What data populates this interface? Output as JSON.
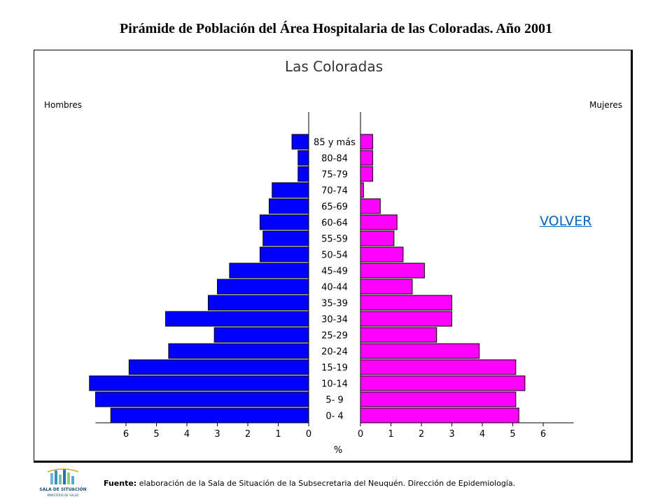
{
  "page": {
    "title": "Pirámide de Población del Área Hospitalaria de las Coloradas. Año 2001",
    "volver_label": "VOLVER",
    "footer_label": "Fuente:",
    "footer_text": " elaboración de la Sala de Situación de la Subsecretaria del Neuquén. Dirección de Epidemiología.",
    "logo_text": "SALA DE SITUACIÓN",
    "logo_subtext": "MINISTERIO DE SALUD"
  },
  "chart_data": {
    "type": "bar",
    "orientation": "horizontal-pyramid",
    "title": "Las Coloradas",
    "left_label": "Hombres",
    "right_label": "Mujeres",
    "xlabel": "%",
    "categories": [
      "0- 4",
      "5- 9",
      "10-14",
      "15-19",
      "20-24",
      "25-29",
      "30-34",
      "35-39",
      "40-44",
      "45-49",
      "50-54",
      "55-59",
      "60-64",
      "65-69",
      "70-74",
      "75-79",
      "80-84",
      "85 y más"
    ],
    "series": [
      {
        "name": "Hombres",
        "color": "#0000ff",
        "values": [
          6.5,
          7.0,
          7.2,
          5.9,
          4.6,
          3.1,
          4.7,
          3.3,
          3.0,
          2.6,
          1.6,
          1.5,
          1.6,
          1.3,
          1.2,
          0.35,
          0.35,
          0.55
        ]
      },
      {
        "name": "Mujeres",
        "color": "#ff00ff",
        "values": [
          5.2,
          5.1,
          5.4,
          5.1,
          3.9,
          2.5,
          3.0,
          3.0,
          1.7,
          2.1,
          1.4,
          1.1,
          1.2,
          0.65,
          0.1,
          0.4,
          0.4,
          0.4
        ]
      }
    ],
    "xticks_left": [
      "6",
      "5",
      "4",
      "3",
      "2",
      "1",
      "0"
    ],
    "xticks_right": [
      "0",
      "1",
      "2",
      "3",
      "4",
      "5",
      "6"
    ],
    "xlim": [
      0,
      7
    ]
  }
}
